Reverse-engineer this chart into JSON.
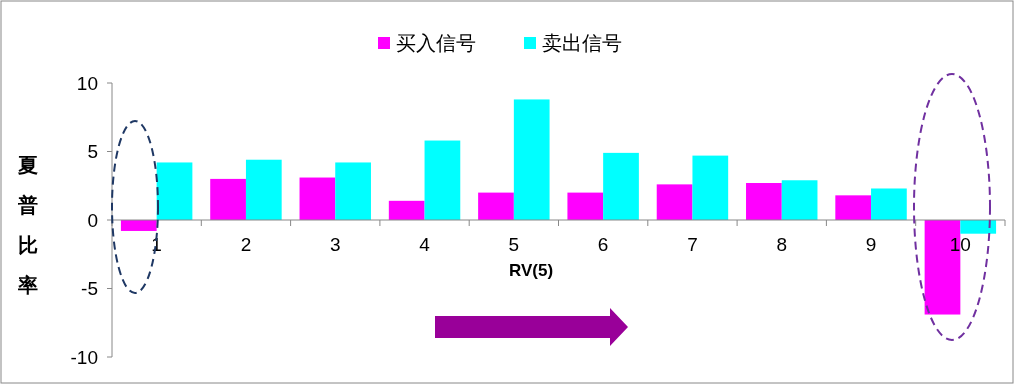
{
  "chart_data": {
    "type": "bar",
    "xlabel": "RV(5)",
    "ylabel": "夏普比率",
    "categories": [
      "1",
      "2",
      "3",
      "4",
      "5",
      "6",
      "7",
      "8",
      "9",
      "10"
    ],
    "series": [
      {
        "name": "买入信号",
        "color": "#ff00ff",
        "values": [
          -0.8,
          3.0,
          3.1,
          1.4,
          2.0,
          2.0,
          2.6,
          2.7,
          1.8,
          -6.9
        ]
      },
      {
        "name": "卖出信号",
        "color": "#00ffff",
        "values": [
          4.2,
          4.4,
          4.2,
          5.8,
          8.8,
          4.9,
          4.7,
          2.9,
          2.3,
          -1.0
        ]
      }
    ],
    "ylim": [
      -10,
      10
    ],
    "yticks": [
      -10,
      -5,
      0,
      5,
      10
    ],
    "grid": false,
    "legend": "top"
  }
}
